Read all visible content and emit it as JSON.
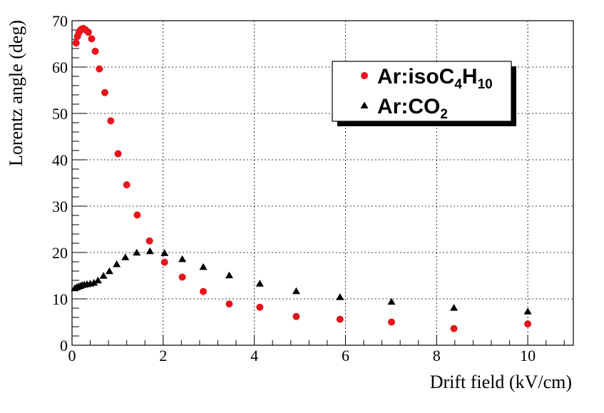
{
  "chart_data": {
    "type": "scatter",
    "title": "",
    "xlabel": "Drift field (kV/cm)",
    "ylabel": "Lorentz angle (deg)",
    "xlim": [
      0,
      11
    ],
    "ylim": [
      0,
      70
    ],
    "x_ticks": [
      0,
      2,
      4,
      6,
      8,
      10
    ],
    "y_ticks": [
      0,
      10,
      20,
      30,
      40,
      50,
      60,
      70
    ],
    "x_tick_labels": [
      "0",
      "2",
      "4",
      "6",
      "8",
      "10"
    ],
    "y_tick_labels": [
      "0",
      "10",
      "20",
      "30",
      "40",
      "50",
      "60",
      "70"
    ],
    "grid": true,
    "legend_position": "top-right",
    "series": [
      {
        "name_prefix": "Ar:isoC",
        "name_sub1": "4",
        "name_mid": "H",
        "name_sub2": "10",
        "marker": "circle",
        "color": "#e8141c",
        "points": [
          {
            "x": 0.09,
            "y": 65.2
          },
          {
            "x": 0.12,
            "y": 66.6
          },
          {
            "x": 0.15,
            "y": 67.4
          },
          {
            "x": 0.18,
            "y": 67.9
          },
          {
            "x": 0.21,
            "y": 68.2
          },
          {
            "x": 0.25,
            "y": 68.3
          },
          {
            "x": 0.3,
            "y": 68.0
          },
          {
            "x": 0.36,
            "y": 67.5
          },
          {
            "x": 0.43,
            "y": 66.1
          },
          {
            "x": 0.51,
            "y": 63.4
          },
          {
            "x": 0.6,
            "y": 59.6
          },
          {
            "x": 0.72,
            "y": 54.5
          },
          {
            "x": 0.85,
            "y": 48.4
          },
          {
            "x": 1.01,
            "y": 41.3
          },
          {
            "x": 1.2,
            "y": 34.6
          },
          {
            "x": 1.43,
            "y": 28.1
          },
          {
            "x": 1.7,
            "y": 22.5
          },
          {
            "x": 2.03,
            "y": 17.9
          },
          {
            "x": 2.42,
            "y": 14.7
          },
          {
            "x": 2.88,
            "y": 11.6
          },
          {
            "x": 3.45,
            "y": 8.9
          },
          {
            "x": 4.12,
            "y": 8.2
          },
          {
            "x": 4.92,
            "y": 6.2
          },
          {
            "x": 5.88,
            "y": 5.6
          },
          {
            "x": 7.01,
            "y": 5.0
          },
          {
            "x": 8.38,
            "y": 3.6
          },
          {
            "x": 10.0,
            "y": 4.6
          }
        ]
      },
      {
        "name_prefix": "Ar:CO",
        "name_sub1": "2",
        "marker": "triangle",
        "color": "#000000",
        "points": [
          {
            "x": 0.06,
            "y": 12.2
          },
          {
            "x": 0.1,
            "y": 12.4
          },
          {
            "x": 0.14,
            "y": 12.6
          },
          {
            "x": 0.18,
            "y": 12.7
          },
          {
            "x": 0.22,
            "y": 12.9
          },
          {
            "x": 0.27,
            "y": 13.0
          },
          {
            "x": 0.33,
            "y": 13.1
          },
          {
            "x": 0.4,
            "y": 13.2
          },
          {
            "x": 0.48,
            "y": 13.4
          },
          {
            "x": 0.57,
            "y": 13.9
          },
          {
            "x": 0.69,
            "y": 14.9
          },
          {
            "x": 0.82,
            "y": 15.9
          },
          {
            "x": 0.98,
            "y": 17.4
          },
          {
            "x": 1.17,
            "y": 18.9
          },
          {
            "x": 1.42,
            "y": 19.9
          },
          {
            "x": 1.71,
            "y": 20.2
          },
          {
            "x": 2.03,
            "y": 19.8
          },
          {
            "x": 2.42,
            "y": 18.5
          },
          {
            "x": 2.88,
            "y": 16.8
          },
          {
            "x": 3.45,
            "y": 15.0
          },
          {
            "x": 4.12,
            "y": 13.2
          },
          {
            "x": 4.92,
            "y": 11.6
          },
          {
            "x": 5.88,
            "y": 10.3
          },
          {
            "x": 7.01,
            "y": 9.3
          },
          {
            "x": 8.38,
            "y": 8.0
          },
          {
            "x": 10.0,
            "y": 7.2
          }
        ]
      }
    ]
  }
}
